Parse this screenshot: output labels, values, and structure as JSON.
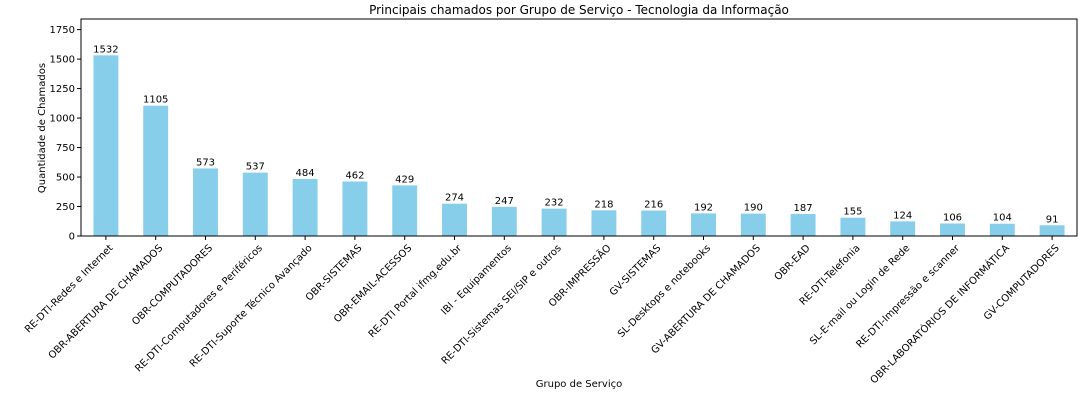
{
  "chart_data": {
    "type": "bar",
    "title": "Principais chamados por Grupo de Serviço - Tecnologia da Informação",
    "xlabel": "Grupo de Serviço",
    "ylabel": "Quantidade de Chamados",
    "categories": [
      "RE-DTI-Redes e Internet",
      "OBR-ABERTURA DE CHAMADOS",
      "OBR-COMPUTADORES",
      "RE-DTI-Computadores e Periféricos",
      "RE-DTI-Suporte Técnico Avançado",
      "OBR-SISTEMAS",
      "OBR-EMAIL-ACESSOS",
      "RE-DTI Portal ifmg.edu.br",
      "IBI - Equipamentos",
      "RE-DTI-Sistemas SEI/SIP e outros",
      "OBR-IMPRESSÃO",
      "GV-SISTEMAS",
      "SL-Desktops e notebooks",
      "GV-ABERTURA DE CHAMADOS",
      "OBR-EAD",
      "RE-DTI-Telefonia",
      "SL-E-mail ou Login de Rede",
      "RE-DTI-Impressão e scanner",
      "OBR-LABORATÓRIOS DE INFORMÁTICA",
      "GV-COMPUTADORES"
    ],
    "values": [
      1532,
      1105,
      573,
      537,
      484,
      462,
      429,
      274,
      247,
      232,
      218,
      216,
      192,
      190,
      187,
      155,
      124,
      106,
      104,
      91
    ],
    "ylim": [
      0,
      1840
    ],
    "yticks": [
      0,
      250,
      500,
      750,
      1000,
      1250,
      1500,
      1750
    ],
    "bar_color": "#87ceeb",
    "grid": false,
    "legend": "none"
  }
}
